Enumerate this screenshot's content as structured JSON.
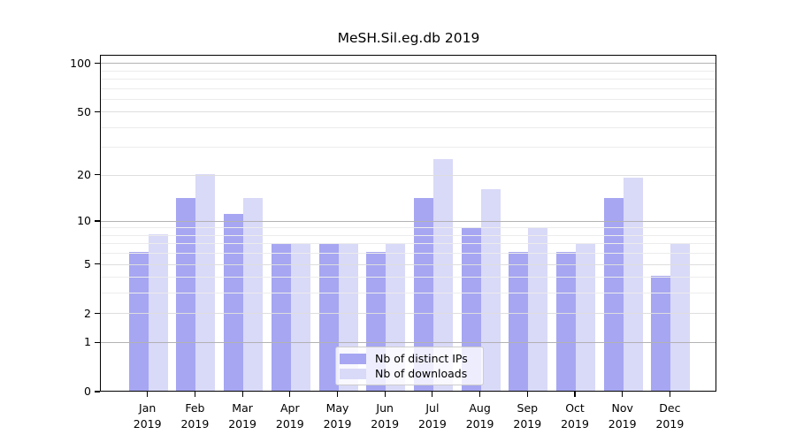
{
  "chart_data": {
    "type": "bar",
    "title": "MeSH.Sil.eg.db 2019",
    "categories": [
      "Jan",
      "Feb",
      "Mar",
      "Apr",
      "May",
      "Jun",
      "Jul",
      "Aug",
      "Sep",
      "Oct",
      "Nov",
      "Dec"
    ],
    "year_label": "2019",
    "series": [
      {
        "name": "Nb of distinct IPs",
        "color": "#a6a6f2",
        "values": [
          6,
          14,
          11,
          7,
          7,
          6,
          14,
          9,
          6,
          6,
          14,
          4
        ]
      },
      {
        "name": "Nb of downloads",
        "color": "#d9d9f8",
        "values": [
          8,
          20,
          14,
          7,
          7,
          7,
          25,
          16,
          9,
          7,
          19,
          7
        ]
      }
    ],
    "yscale": "log1p",
    "ylim": [
      0,
      112
    ],
    "yticks": [
      0,
      1,
      2,
      5,
      10,
      20,
      50,
      100
    ],
    "major_gridlines": [
      1,
      10,
      100
    ],
    "mid_gridlines": [
      2,
      5,
      20,
      50
    ],
    "minor_gridlines": [
      3,
      4,
      6,
      7,
      8,
      9,
      30,
      40,
      60,
      70,
      80,
      90
    ],
    "grid": true,
    "legend_position": "lower center",
    "xlabel": "",
    "ylabel": ""
  },
  "legend": {
    "items": [
      {
        "label": "Nb of distinct IPs",
        "color": "#a6a6f2"
      },
      {
        "label": "Nb of downloads",
        "color": "#d9d9f8"
      }
    ]
  },
  "colors": {
    "grid_major": "#b3b3b3",
    "grid_mid": "#dedede",
    "grid_minor": "#ececec",
    "spine": "#000000",
    "background": "#ffffff"
  }
}
